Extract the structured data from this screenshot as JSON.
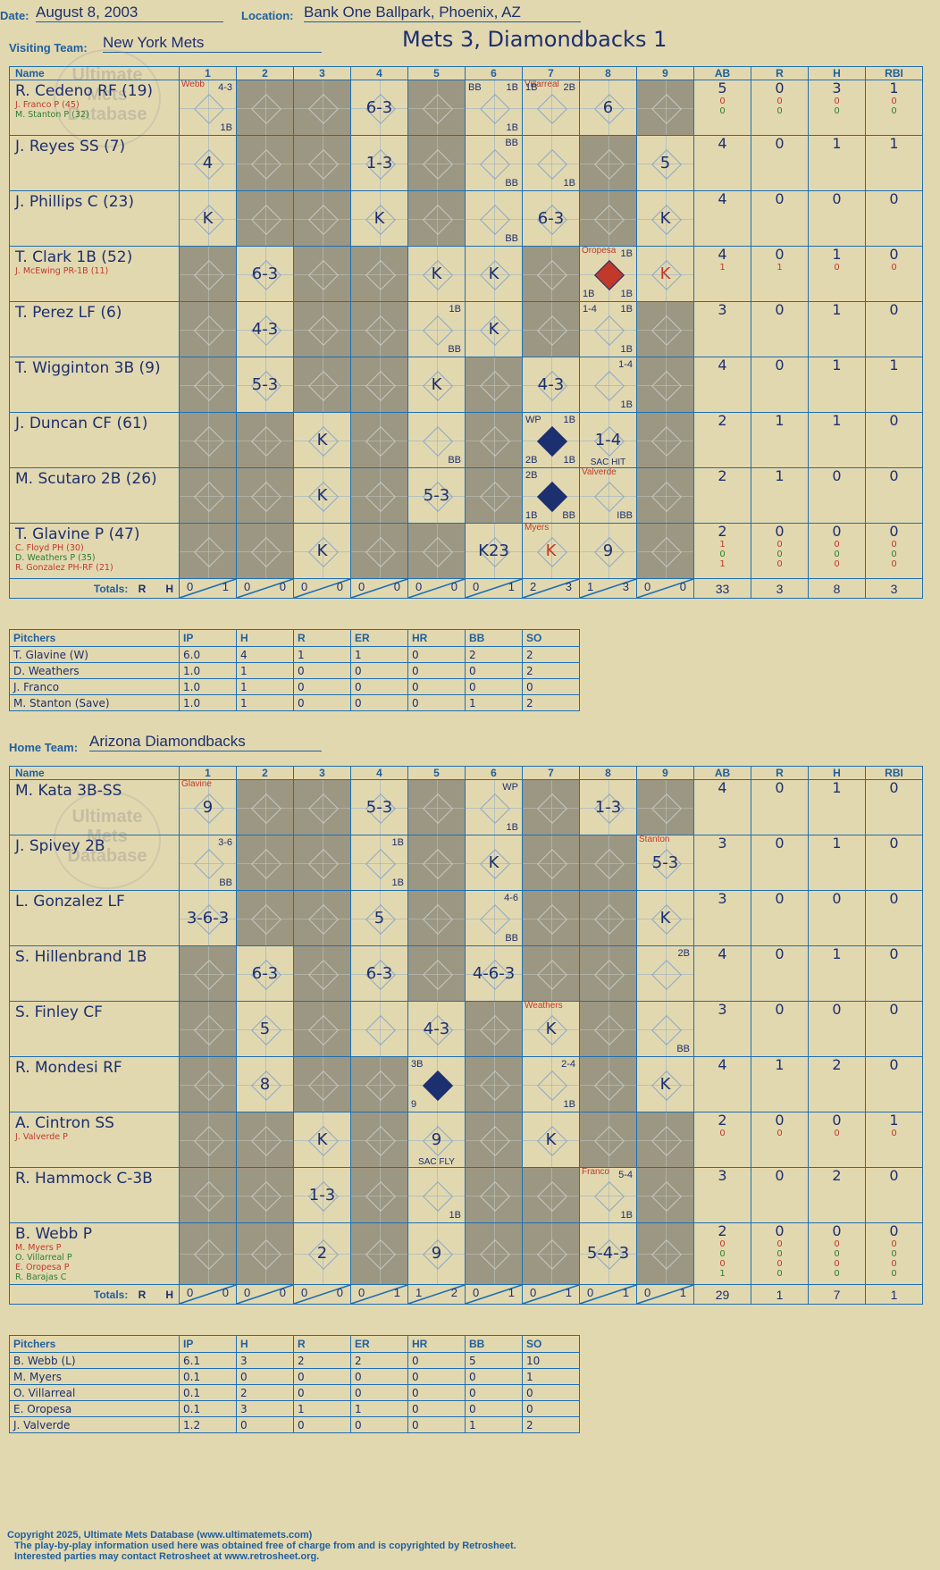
{
  "header": {
    "date_label": "Date:",
    "date": "August 8, 2003",
    "location_label": "Location:",
    "location": "Bank One Ballpark, Phoenix, AZ",
    "visiting_label": "Visiting Team:",
    "visiting_team": "New York Mets",
    "home_label": "Home Team:",
    "home_team": "Arizona Diamondbacks",
    "title": "Mets 3, Diamondbacks 1"
  },
  "watermark": "Ultimate Mets Database",
  "columns": {
    "name": "Name",
    "innings": [
      "1",
      "2",
      "3",
      "4",
      "5",
      "6",
      "7",
      "8",
      "9"
    ],
    "stats": [
      "AB",
      "R",
      "H",
      "RBI"
    ]
  },
  "visitors": [
    {
      "name": "R. Cedeno RF (19)",
      "subs": [
        {
          "t": "J. Franco P (45)",
          "c": "red"
        },
        {
          "t": "M. Stanton P (32)",
          "c": "green"
        }
      ],
      "stats": {
        "AB": "5",
        "R": "0",
        "H": "3",
        "RBI": "1"
      },
      "sub_stats": [
        [
          "0",
          "0",
          "0",
          "0"
        ],
        [
          "0",
          "0",
          "0",
          "0"
        ]
      ],
      "innings": [
        {
          "note": "Webb",
          "tr": "4-3",
          "br": "1B"
        },
        {},
        {},
        {
          "mark": "6-3"
        },
        {},
        {
          "tl": "BB",
          "tr": "1B",
          "br": "1B"
        },
        {
          "note": "Villarreal",
          "tl": "1B",
          "tr": "2B"
        },
        {
          "mark": "6"
        },
        {}
      ]
    },
    {
      "name": "J. Reyes SS (7)",
      "subs": [],
      "stats": {
        "AB": "4",
        "R": "0",
        "H": "1",
        "RBI": "1"
      },
      "sub_stats": [],
      "innings": [
        {
          "mark": "4"
        },
        {},
        {},
        {
          "mark": "1-3"
        },
        {},
        {
          "tr": "BB",
          "br": "BB"
        },
        {
          "br": "1B"
        },
        {},
        {
          "mark": "5"
        }
      ]
    },
    {
      "name": "J. Phillips C (23)",
      "subs": [],
      "stats": {
        "AB": "4",
        "R": "0",
        "H": "0",
        "RBI": "0"
      },
      "sub_stats": [],
      "innings": [
        {
          "mark": "K"
        },
        {},
        {},
        {
          "mark": "K"
        },
        {},
        {
          "br": "BB"
        },
        {
          "mark": "6-3"
        },
        {},
        {
          "mark": "K"
        }
      ]
    },
    {
      "name": "T. Clark 1B (52)",
      "subs": [
        {
          "t": "J. McEwing PR-1B (11)",
          "c": "red"
        }
      ],
      "stats": {
        "AB": "4",
        "R": "0",
        "H": "1",
        "RBI": "0"
      },
      "sub_stats": [
        [
          "1",
          "1",
          "0",
          "0"
        ]
      ],
      "innings": [
        {},
        {
          "mark": "6-3"
        },
        {},
        {},
        {
          "mark": "K"
        },
        {
          "mark": "K"
        },
        {},
        {
          "note": "Oropesa",
          "tr": "1B",
          "bl": "1B",
          "br": "1B",
          "scored": "red"
        },
        {
          "mark": "K",
          "red": true
        }
      ]
    },
    {
      "name": "T. Perez LF (6)",
      "subs": [],
      "stats": {
        "AB": "3",
        "R": "0",
        "H": "1",
        "RBI": "0"
      },
      "sub_stats": [],
      "innings": [
        {},
        {
          "mark": "4-3"
        },
        {},
        {},
        {
          "tr": "1B",
          "br": "BB"
        },
        {
          "mark": "K"
        },
        {},
        {
          "tl": "1-4",
          "tr": "1B",
          "br": "1B"
        },
        {}
      ]
    },
    {
      "name": "T. Wigginton 3B (9)",
      "subs": [],
      "stats": {
        "AB": "4",
        "R": "0",
        "H": "1",
        "RBI": "1"
      },
      "sub_stats": [],
      "innings": [
        {},
        {
          "mark": "5-3"
        },
        {},
        {},
        {
          "mark": "K"
        },
        {},
        {
          "mark": "4-3"
        },
        {
          "tr": "1-4",
          "br": "1B"
        },
        {}
      ]
    },
    {
      "name": "J. Duncan CF (61)",
      "subs": [],
      "stats": {
        "AB": "2",
        "R": "1",
        "H": "1",
        "RBI": "0"
      },
      "sub_stats": [],
      "innings": [
        {},
        {},
        {
          "mark": "K"
        },
        {},
        {
          "br": "BB"
        },
        {},
        {
          "tl": "WP",
          "tr": "1B",
          "bl": "2B",
          "br": "1B",
          "scored": "blue"
        },
        {
          "mark": "1-4",
          "sac": "SAC HIT"
        },
        {}
      ]
    },
    {
      "name": "M. Scutaro 2B (26)",
      "subs": [],
      "stats": {
        "AB": "2",
        "R": "1",
        "H": "0",
        "RBI": "0"
      },
      "sub_stats": [],
      "innings": [
        {},
        {},
        {
          "mark": "K"
        },
        {},
        {
          "mark": "5-3"
        },
        {},
        {
          "tl": "2B",
          "bl": "1B",
          "br": "BB",
          "scored": "blue"
        },
        {
          "note": "Valverde",
          "br": "IBB"
        },
        {}
      ]
    },
    {
      "name": "T. Glavine P (47)",
      "subs": [
        {
          "t": "C. Floyd PH (30)",
          "c": "red"
        },
        {
          "t": "D. Weathers P (35)",
          "c": "green"
        },
        {
          "t": "R. Gonzalez PH-RF (21)",
          "c": "red"
        }
      ],
      "stats": {
        "AB": "2",
        "R": "0",
        "H": "0",
        "RBI": "0"
      },
      "sub_stats": [
        [
          "1",
          "0",
          "0",
          "0"
        ],
        [
          "0",
          "0",
          "0",
          "0"
        ],
        [
          "1",
          "0",
          "0",
          "0"
        ]
      ],
      "innings": [
        {},
        {},
        {
          "mark": "K"
        },
        {},
        {},
        {
          "mark": "K23"
        },
        {
          "note": "Myers",
          "mark": "K",
          "red": true
        },
        {
          "mark": "9"
        },
        {}
      ]
    }
  ],
  "visitors_totals": {
    "label": "Totals:",
    "r_label": "R",
    "h_label": "H",
    "innings": [
      [
        "0",
        "1"
      ],
      [
        "0",
        "0"
      ],
      [
        "0",
        "0"
      ],
      [
        "0",
        "0"
      ],
      [
        "0",
        "0"
      ],
      [
        "0",
        "1"
      ],
      [
        "2",
        "3"
      ],
      [
        "1",
        "3"
      ],
      [
        "0",
        "0"
      ]
    ],
    "stats": [
      "33",
      "3",
      "8",
      "3"
    ]
  },
  "visitors_pitchers": {
    "header": [
      "Pitchers",
      "IP",
      "H",
      "R",
      "ER",
      "HR",
      "BB",
      "SO"
    ],
    "rows": [
      [
        "T. Glavine (W)",
        "6.0",
        "4",
        "1",
        "1",
        "0",
        "2",
        "2"
      ],
      [
        "D. Weathers",
        "1.0",
        "1",
        "0",
        "0",
        "0",
        "0",
        "2"
      ],
      [
        "J. Franco",
        "1.0",
        "1",
        "0",
        "0",
        "0",
        "0",
        "0"
      ],
      [
        "M. Stanton (Save)",
        "1.0",
        "1",
        "0",
        "0",
        "0",
        "1",
        "2"
      ]
    ]
  },
  "home": [
    {
      "name": "M. Kata 3B-SS",
      "subs": [],
      "stats": {
        "AB": "4",
        "R": "0",
        "H": "1",
        "RBI": "0"
      },
      "sub_stats": [],
      "innings": [
        {
          "note": "Glavine",
          "mark": "9"
        },
        {},
        {},
        {
          "mark": "5-3"
        },
        {},
        {
          "tr": "WP",
          "br": "1B"
        },
        {},
        {
          "mark": "1-3"
        },
        {}
      ]
    },
    {
      "name": "J. Spivey 2B",
      "subs": [],
      "stats": {
        "AB": "3",
        "R": "0",
        "H": "1",
        "RBI": "0"
      },
      "sub_stats": [],
      "innings": [
        {
          "tr": "3-6",
          "br": "BB"
        },
        {},
        {},
        {
          "tr": "1B",
          "br": "1B"
        },
        {},
        {
          "mark": "K"
        },
        {},
        {},
        {
          "note": "Stanton",
          "mark": "5-3"
        }
      ]
    },
    {
      "name": "L. Gonzalez LF",
      "subs": [],
      "stats": {
        "AB": "3",
        "R": "0",
        "H": "0",
        "RBI": "0"
      },
      "sub_stats": [],
      "innings": [
        {
          "mark": "3-6-3"
        },
        {},
        {},
        {
          "mark": "5"
        },
        {},
        {
          "tr": "4-6",
          "br": "BB"
        },
        {},
        {},
        {
          "mark": "K"
        }
      ]
    },
    {
      "name": "S. Hillenbrand 1B",
      "subs": [],
      "stats": {
        "AB": "4",
        "R": "0",
        "H": "1",
        "RBI": "0"
      },
      "sub_stats": [],
      "innings": [
        {},
        {
          "mark": "6-3"
        },
        {},
        {
          "mark": "6-3"
        },
        {},
        {
          "mark": "4-6-3"
        },
        {},
        {},
        {
          "tr": "2B"
        }
      ]
    },
    {
      "name": "S. Finley CF",
      "subs": [],
      "stats": {
        "AB": "3",
        "R": "0",
        "H": "0",
        "RBI": "0"
      },
      "sub_stats": [],
      "innings": [
        {},
        {
          "mark": "5"
        },
        {},
        {},
        {
          "mark": "4-3"
        },
        {},
        {
          "note": "Weathers",
          "mark": "K"
        },
        {},
        {
          "br": "BB"
        }
      ]
    },
    {
      "name": "R. Mondesi RF",
      "subs": [],
      "stats": {
        "AB": "4",
        "R": "1",
        "H": "2",
        "RBI": "0"
      },
      "sub_stats": [],
      "innings": [
        {},
        {
          "mark": "8"
        },
        {},
        {},
        {
          "tl": "3B",
          "bl": "9",
          "scored": "blue"
        },
        {},
        {
          "tr": "2-4",
          "br": "1B"
        },
        {},
        {
          "mark": "K"
        }
      ]
    },
    {
      "name": "A. Cintron SS",
      "subs": [
        {
          "t": "J. Valverde P",
          "c": "red"
        }
      ],
      "stats": {
        "AB": "2",
        "R": "0",
        "H": "0",
        "RBI": "1"
      },
      "sub_stats": [
        [
          "0",
          "0",
          "0",
          "0"
        ]
      ],
      "innings": [
        {},
        {},
        {
          "mark": "K"
        },
        {},
        {
          "mark": "9",
          "sac": "SAC FLY"
        },
        {},
        {
          "mark": "K"
        },
        {},
        {}
      ]
    },
    {
      "name": "R. Hammock C-3B",
      "subs": [],
      "stats": {
        "AB": "3",
        "R": "0",
        "H": "2",
        "RBI": "0"
      },
      "sub_stats": [],
      "innings": [
        {},
        {},
        {
          "mark": "1-3"
        },
        {},
        {
          "br": "1B"
        },
        {},
        {},
        {
          "note": "Franco",
          "tr": "5-4",
          "br": "1B"
        },
        {}
      ]
    },
    {
      "name": "B. Webb P",
      "subs": [
        {
          "t": "M. Myers P",
          "c": "red"
        },
        {
          "t": "O. Villarreal P",
          "c": "green"
        },
        {
          "t": "E. Oropesa P",
          "c": "red"
        },
        {
          "t": "R. Barajas C",
          "c": "green"
        }
      ],
      "stats": {
        "AB": "2",
        "R": "0",
        "H": "0",
        "RBI": "0"
      },
      "sub_stats": [
        [
          "0",
          "0",
          "0",
          "0"
        ],
        [
          "0",
          "0",
          "0",
          "0"
        ],
        [
          "0",
          "0",
          "0",
          "0"
        ],
        [
          "1",
          "0",
          "0",
          "0"
        ]
      ],
      "innings": [
        {},
        {},
        {
          "mark": "2"
        },
        {},
        {
          "mark": "9"
        },
        {},
        {},
        {
          "mark": "5-4-3"
        },
        {}
      ]
    }
  ],
  "home_totals": {
    "label": "Totals:",
    "r_label": "R",
    "h_label": "H",
    "innings": [
      [
        "0",
        "0"
      ],
      [
        "0",
        "0"
      ],
      [
        "0",
        "0"
      ],
      [
        "0",
        "1"
      ],
      [
        "1",
        "2"
      ],
      [
        "0",
        "1"
      ],
      [
        "0",
        "1"
      ],
      [
        "0",
        "1"
      ],
      [
        "0",
        "1"
      ]
    ],
    "stats": [
      "29",
      "1",
      "7",
      "1"
    ]
  },
  "home_pitchers": {
    "header": [
      "Pitchers",
      "IP",
      "H",
      "R",
      "ER",
      "HR",
      "BB",
      "SO"
    ],
    "rows": [
      [
        "B. Webb (L)",
        "6.1",
        "3",
        "2",
        "2",
        "0",
        "5",
        "10"
      ],
      [
        "M. Myers",
        "0.1",
        "0",
        "0",
        "0",
        "0",
        "0",
        "1"
      ],
      [
        "O. Villarreal",
        "0.1",
        "2",
        "0",
        "0",
        "0",
        "0",
        "0"
      ],
      [
        "E. Oropesa",
        "0.1",
        "3",
        "1",
        "1",
        "0",
        "0",
        "0"
      ],
      [
        "J. Valverde",
        "1.2",
        "0",
        "0",
        "0",
        "0",
        "1",
        "2"
      ]
    ]
  },
  "footer": {
    "line1": "Copyright 2025, Ultimate Mets Database (www.ultimatemets.com)",
    "line2": "The play-by-play information used here was obtained free of charge from and is copyrighted by Retrosheet.",
    "line3": "Interested parties may contact Retrosheet at www.retrosheet.org."
  },
  "colors": {
    "bg": "#e2d8b0",
    "line": "#1f6fb0",
    "ink": "#1c2f6e",
    "gray": "#9c9783",
    "red": "#c0392b",
    "green": "#2e7d32"
  }
}
